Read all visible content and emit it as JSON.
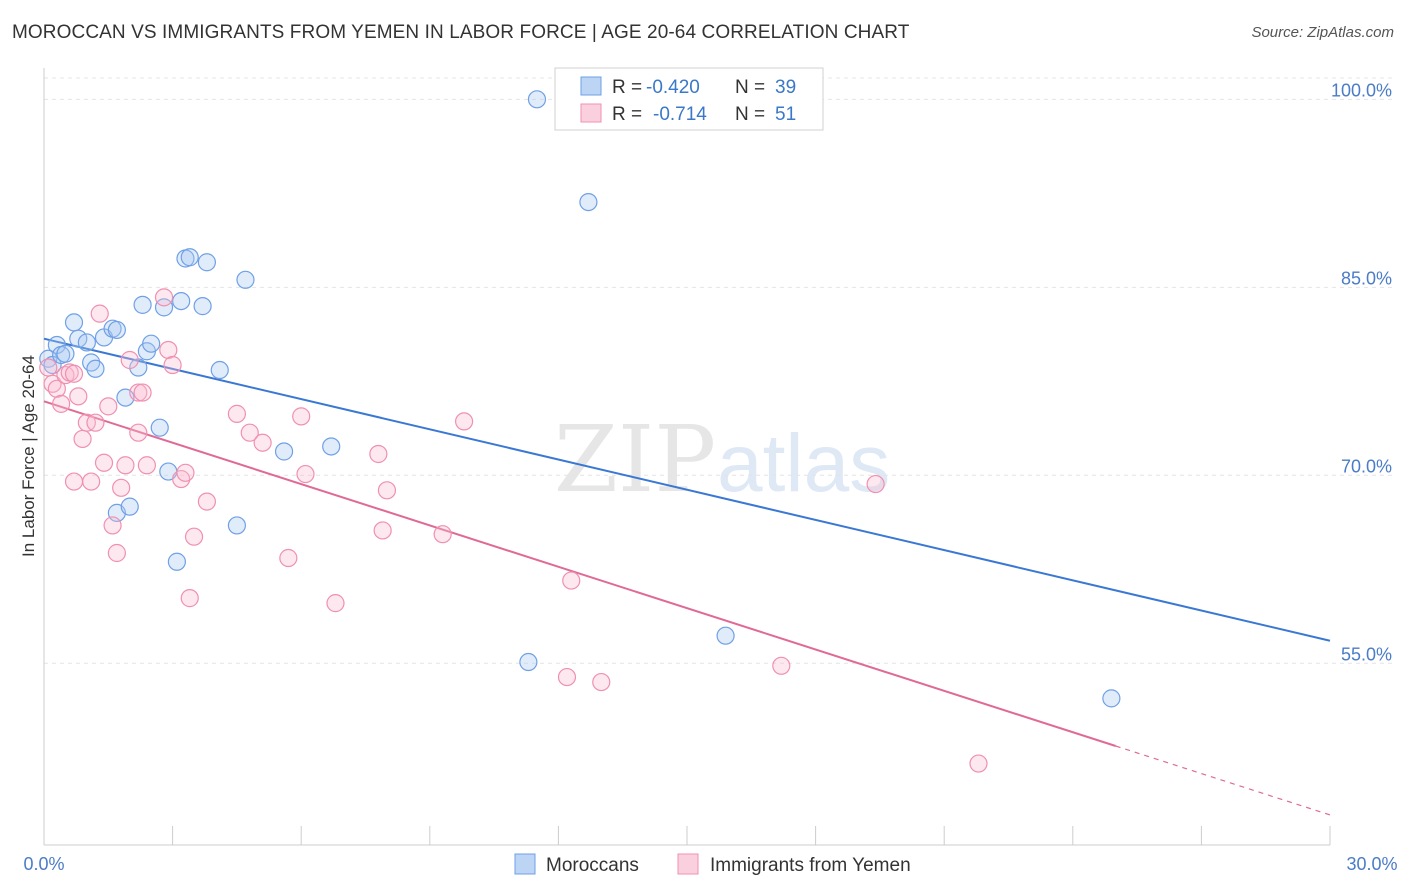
{
  "header": {
    "title": "MOROCCAN VS IMMIGRANTS FROM YEMEN IN LABOR FORCE | AGE 20-64 CORRELATION CHART",
    "source": "Source: ZipAtlas.com"
  },
  "watermark": {
    "zip": "ZIP",
    "atlas": "atlas"
  },
  "legend": {
    "rows": [
      {
        "r_label": "R =",
        "r_value": "-0.420",
        "n_label": "N =",
        "n_value": "39"
      },
      {
        "r_label": "R =",
        "r_value": "-0.714",
        "n_label": "N =",
        "n_value": "51"
      }
    ]
  },
  "chart_data": {
    "type": "scatter",
    "title": "MOROCCAN VS IMMIGRANTS FROM YEMEN IN LABOR FORCE | AGE 20-64 CORRELATION CHART",
    "xlabel": "",
    "ylabel": "In Labor Force | Age 20-64",
    "xlim": [
      0,
      30
    ],
    "ylim": [
      40.5,
      102.5
    ],
    "x_tick_labels": [
      "0.0%",
      "30.0%"
    ],
    "y_ticks": [
      55,
      70,
      85,
      100
    ],
    "y_tick_labels": [
      "55.0%",
      "70.0%",
      "85.0%",
      "100.0%"
    ],
    "grid": true,
    "legend_position": "top-center",
    "colors": {
      "Moroccans": "#6fa0e6",
      "Immigrants from Yemen": "#f090b0",
      "blue_line": "#3a78d4",
      "pink_line": "#e06a96"
    },
    "series": [
      {
        "name": "Moroccans",
        "r": -0.42,
        "n": 39,
        "trend": {
          "x": [
            0,
            30
          ],
          "y": [
            80.9,
            56.8
          ]
        },
        "points": [
          [
            0.1,
            79.3
          ],
          [
            0.2,
            78.8
          ],
          [
            0.3,
            80.4
          ],
          [
            0.4,
            79.6
          ],
          [
            0.5,
            79.7
          ],
          [
            0.7,
            82.2
          ],
          [
            0.8,
            80.9
          ],
          [
            1.0,
            80.6
          ],
          [
            1.1,
            79.0
          ],
          [
            1.2,
            78.5
          ],
          [
            1.4,
            81.0
          ],
          [
            1.6,
            81.7
          ],
          [
            1.7,
            81.6
          ],
          [
            1.7,
            67.0
          ],
          [
            1.9,
            76.2
          ],
          [
            2.0,
            67.5
          ],
          [
            2.2,
            78.6
          ],
          [
            2.3,
            83.6
          ],
          [
            2.4,
            79.9
          ],
          [
            2.5,
            80.5
          ],
          [
            2.7,
            73.8
          ],
          [
            2.8,
            83.4
          ],
          [
            2.9,
            70.3
          ],
          [
            3.1,
            63.1
          ],
          [
            3.2,
            83.9
          ],
          [
            3.3,
            87.3
          ],
          [
            3.4,
            87.4
          ],
          [
            3.7,
            83.5
          ],
          [
            3.8,
            87.0
          ],
          [
            4.1,
            78.4
          ],
          [
            4.5,
            66.0
          ],
          [
            4.7,
            85.6
          ],
          [
            5.6,
            71.9
          ],
          [
            6.7,
            72.3
          ],
          [
            11.5,
            100.0
          ],
          [
            11.3,
            55.1
          ],
          [
            12.7,
            91.8
          ],
          [
            15.9,
            57.2
          ],
          [
            24.9,
            52.2
          ]
        ]
      },
      {
        "name": "Immigrants from Yemen",
        "r": -0.714,
        "n": 51,
        "trend": {
          "x": [
            0,
            25.0
          ],
          "y": [
            75.9,
            48.4
          ]
        },
        "trend_dashed": {
          "x": [
            25.0,
            30
          ],
          "y": [
            48.4,
            42.9
          ]
        },
        "points": [
          [
            0.1,
            78.6
          ],
          [
            0.2,
            77.3
          ],
          [
            0.3,
            76.9
          ],
          [
            0.4,
            75.7
          ],
          [
            0.5,
            78.0
          ],
          [
            0.6,
            78.2
          ],
          [
            0.7,
            78.1
          ],
          [
            0.7,
            69.5
          ],
          [
            0.8,
            76.3
          ],
          [
            0.9,
            72.9
          ],
          [
            1.0,
            74.2
          ],
          [
            1.1,
            69.5
          ],
          [
            1.2,
            74.2
          ],
          [
            1.3,
            82.9
          ],
          [
            1.4,
            71.0
          ],
          [
            1.5,
            75.5
          ],
          [
            1.6,
            66.0
          ],
          [
            1.7,
            63.8
          ],
          [
            1.8,
            69.0
          ],
          [
            1.9,
            70.8
          ],
          [
            2.0,
            79.2
          ],
          [
            2.2,
            76.6
          ],
          [
            2.2,
            73.4
          ],
          [
            2.3,
            76.6
          ],
          [
            2.4,
            70.8
          ],
          [
            2.8,
            84.2
          ],
          [
            2.9,
            80.0
          ],
          [
            3.0,
            78.8
          ],
          [
            3.2,
            69.7
          ],
          [
            3.3,
            70.2
          ],
          [
            3.4,
            60.2
          ],
          [
            3.8,
            67.9
          ],
          [
            4.5,
            74.9
          ],
          [
            4.8,
            73.4
          ],
          [
            5.1,
            72.6
          ],
          [
            5.7,
            63.4
          ],
          [
            6.0,
            74.7
          ],
          [
            6.1,
            70.1
          ],
          [
            6.8,
            59.8
          ],
          [
            7.8,
            71.7
          ],
          [
            7.9,
            65.6
          ],
          [
            8.0,
            68.8
          ],
          [
            9.3,
            65.3
          ],
          [
            9.8,
            74.3
          ],
          [
            12.3,
            61.6
          ],
          [
            12.2,
            53.9
          ],
          [
            13.0,
            53.5
          ],
          [
            17.2,
            54.8
          ],
          [
            19.4,
            69.3
          ],
          [
            21.8,
            47.0
          ],
          [
            3.5,
            65.1
          ]
        ]
      }
    ]
  },
  "bottom_legend": {
    "items": [
      {
        "label": "Moroccans"
      },
      {
        "label": "Immigrants from Yemen"
      }
    ]
  }
}
